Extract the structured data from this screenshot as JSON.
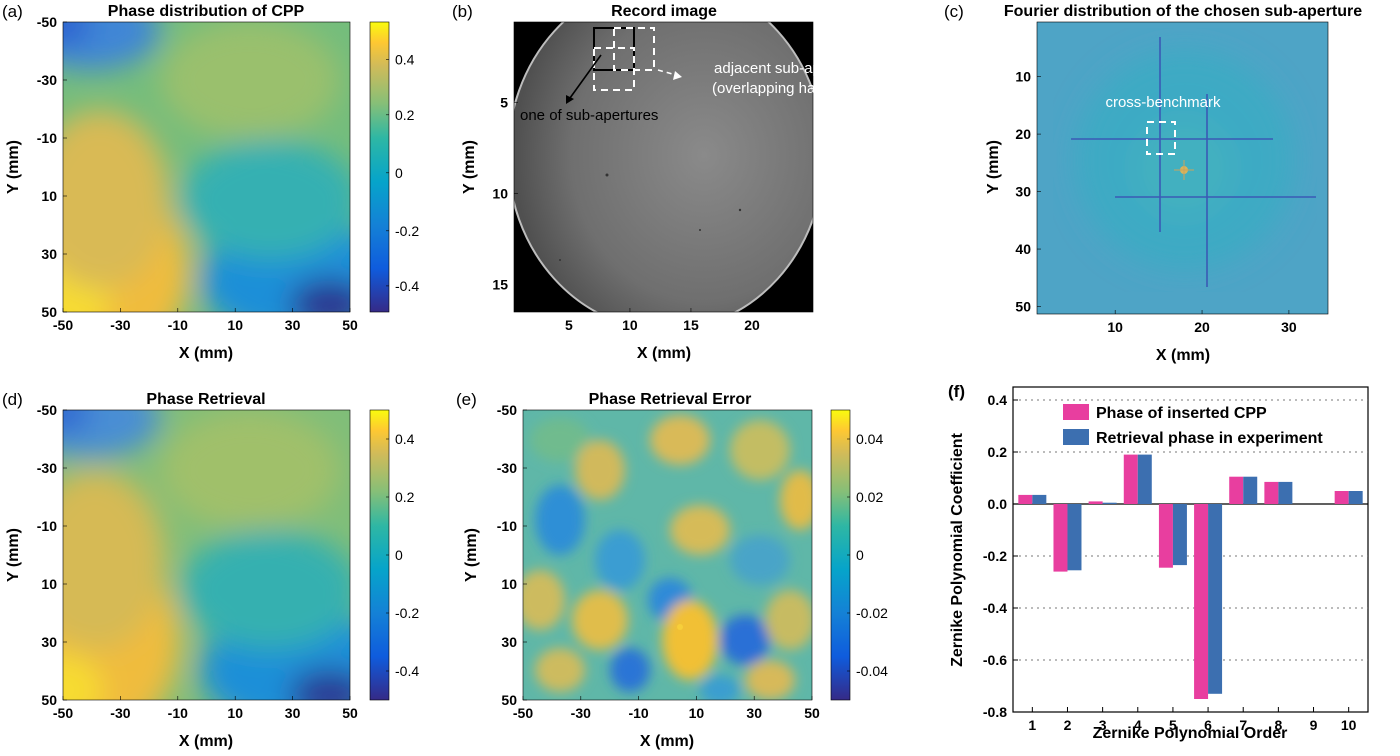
{
  "panels": {
    "a": {
      "label": "(a)",
      "title": "Phase distribution of CPP",
      "xlabel": "X (mm)",
      "ylabel": "Y (mm)",
      "xticks": [
        "-50",
        "-30",
        "-10",
        "10",
        "30",
        "50"
      ],
      "yticks": [
        "-50",
        "-30",
        "-10",
        "10",
        "30",
        "50"
      ],
      "colorbar_ticks": [
        "0.4",
        "0.2",
        "0",
        "-0.2",
        "-0.4"
      ]
    },
    "b": {
      "label": "(b)",
      "title": "Record image",
      "xlabel": "X (mm)",
      "ylabel": "Y (mm)",
      "xticks": [
        "5",
        "10",
        "15",
        "20"
      ],
      "yticks": [
        "5",
        "10",
        "15"
      ],
      "annotation_one": "one of sub-apertures",
      "annotation_adjacent_1": "adjacent sub-aperture",
      "annotation_adjacent_2": "(overlapping half area)"
    },
    "c": {
      "label": "(c)",
      "title": "Fourier distribution of the chosen sub-aperture",
      "xlabel": "X (mm)",
      "ylabel": "Y (mm)",
      "xticks": [
        "10",
        "20",
        "30"
      ],
      "yticks": [
        "10",
        "20",
        "30",
        "40",
        "50"
      ],
      "annotation": "cross-benchmark"
    },
    "d": {
      "label": "(d)",
      "title": "Phase Retrieval",
      "xlabel": "X (mm)",
      "ylabel": "Y (mm)",
      "xticks": [
        "-50",
        "-30",
        "-10",
        "10",
        "30",
        "50"
      ],
      "yticks": [
        "-50",
        "-30",
        "-10",
        "10",
        "30",
        "50"
      ],
      "colorbar_ticks": [
        "0.4",
        "0.2",
        "0",
        "-0.2",
        "-0.4"
      ]
    },
    "e": {
      "label": "(e)",
      "title": "Phase Retrieval Error",
      "xlabel": "X (mm)",
      "ylabel": "Y (mm)",
      "xticks": [
        "-50",
        "-30",
        "-10",
        "10",
        "30",
        "50"
      ],
      "yticks": [
        "-50",
        "-30",
        "-10",
        "10",
        "30",
        "50"
      ],
      "colorbar_ticks": [
        "0.04",
        "0.02",
        "0",
        "-0.02",
        "-0.04"
      ]
    },
    "f": {
      "label": "(f)",
      "xlabel": "Zernike Polynomial Order",
      "ylabel": "Zernike Polynomial Coefficient",
      "legend_1": "Phase of inserted CPP",
      "legend_2": "Retrieval phase in experiment",
      "yticks": [
        "0.4",
        "0.2",
        "0.0",
        "-0.2",
        "-0.4",
        "-0.6",
        "-0.8"
      ]
    }
  },
  "colors": {
    "series1": "#e83e9f",
    "series2": "#3c6fb0"
  },
  "chart_data": [
    {
      "type": "heatmap",
      "title": "Phase distribution of CPP",
      "xlabel": "X (mm)",
      "ylabel": "Y (mm)",
      "xlim": [
        -50,
        50
      ],
      "ylim": [
        -50,
        50
      ],
      "colorbar_range": [
        -0.5,
        0.5
      ]
    },
    {
      "type": "heatmap",
      "title": "Record image",
      "xlabel": "X (mm)",
      "ylabel": "Y (mm)"
    },
    {
      "type": "heatmap",
      "title": "Fourier distribution of the chosen sub-aperture",
      "xlabel": "X (mm)",
      "ylabel": "Y (mm)"
    },
    {
      "type": "heatmap",
      "title": "Phase Retrieval",
      "xlabel": "X (mm)",
      "ylabel": "Y (mm)",
      "xlim": [
        -50,
        50
      ],
      "ylim": [
        -50,
        50
      ],
      "colorbar_range": [
        -0.5,
        0.5
      ]
    },
    {
      "type": "heatmap",
      "title": "Phase Retrieval Error",
      "xlabel": "X (mm)",
      "ylabel": "Y (mm)",
      "xlim": [
        -50,
        50
      ],
      "ylim": [
        -50,
        50
      ],
      "colorbar_range": [
        -0.05,
        0.05
      ]
    },
    {
      "type": "bar",
      "xlabel": "Zernike Polynomial Order",
      "ylabel": "Zernike Polynomial Coefficient",
      "categories": [
        "1",
        "2",
        "3",
        "4",
        "5",
        "6",
        "7",
        "8",
        "9",
        "10"
      ],
      "ylim": [
        -0.8,
        0.45
      ],
      "grid": "dotted",
      "legend": "top-right",
      "series": [
        {
          "name": "Phase of inserted CPP",
          "values": [
            0.035,
            -0.26,
            0.01,
            0.19,
            -0.245,
            -0.75,
            0.105,
            0.085,
            0.0,
            0.05
          ]
        },
        {
          "name": "Retrieval phase in experiment",
          "values": [
            0.035,
            -0.255,
            0.005,
            0.19,
            -0.235,
            -0.73,
            0.105,
            0.085,
            0.0,
            0.05
          ]
        }
      ]
    }
  ]
}
